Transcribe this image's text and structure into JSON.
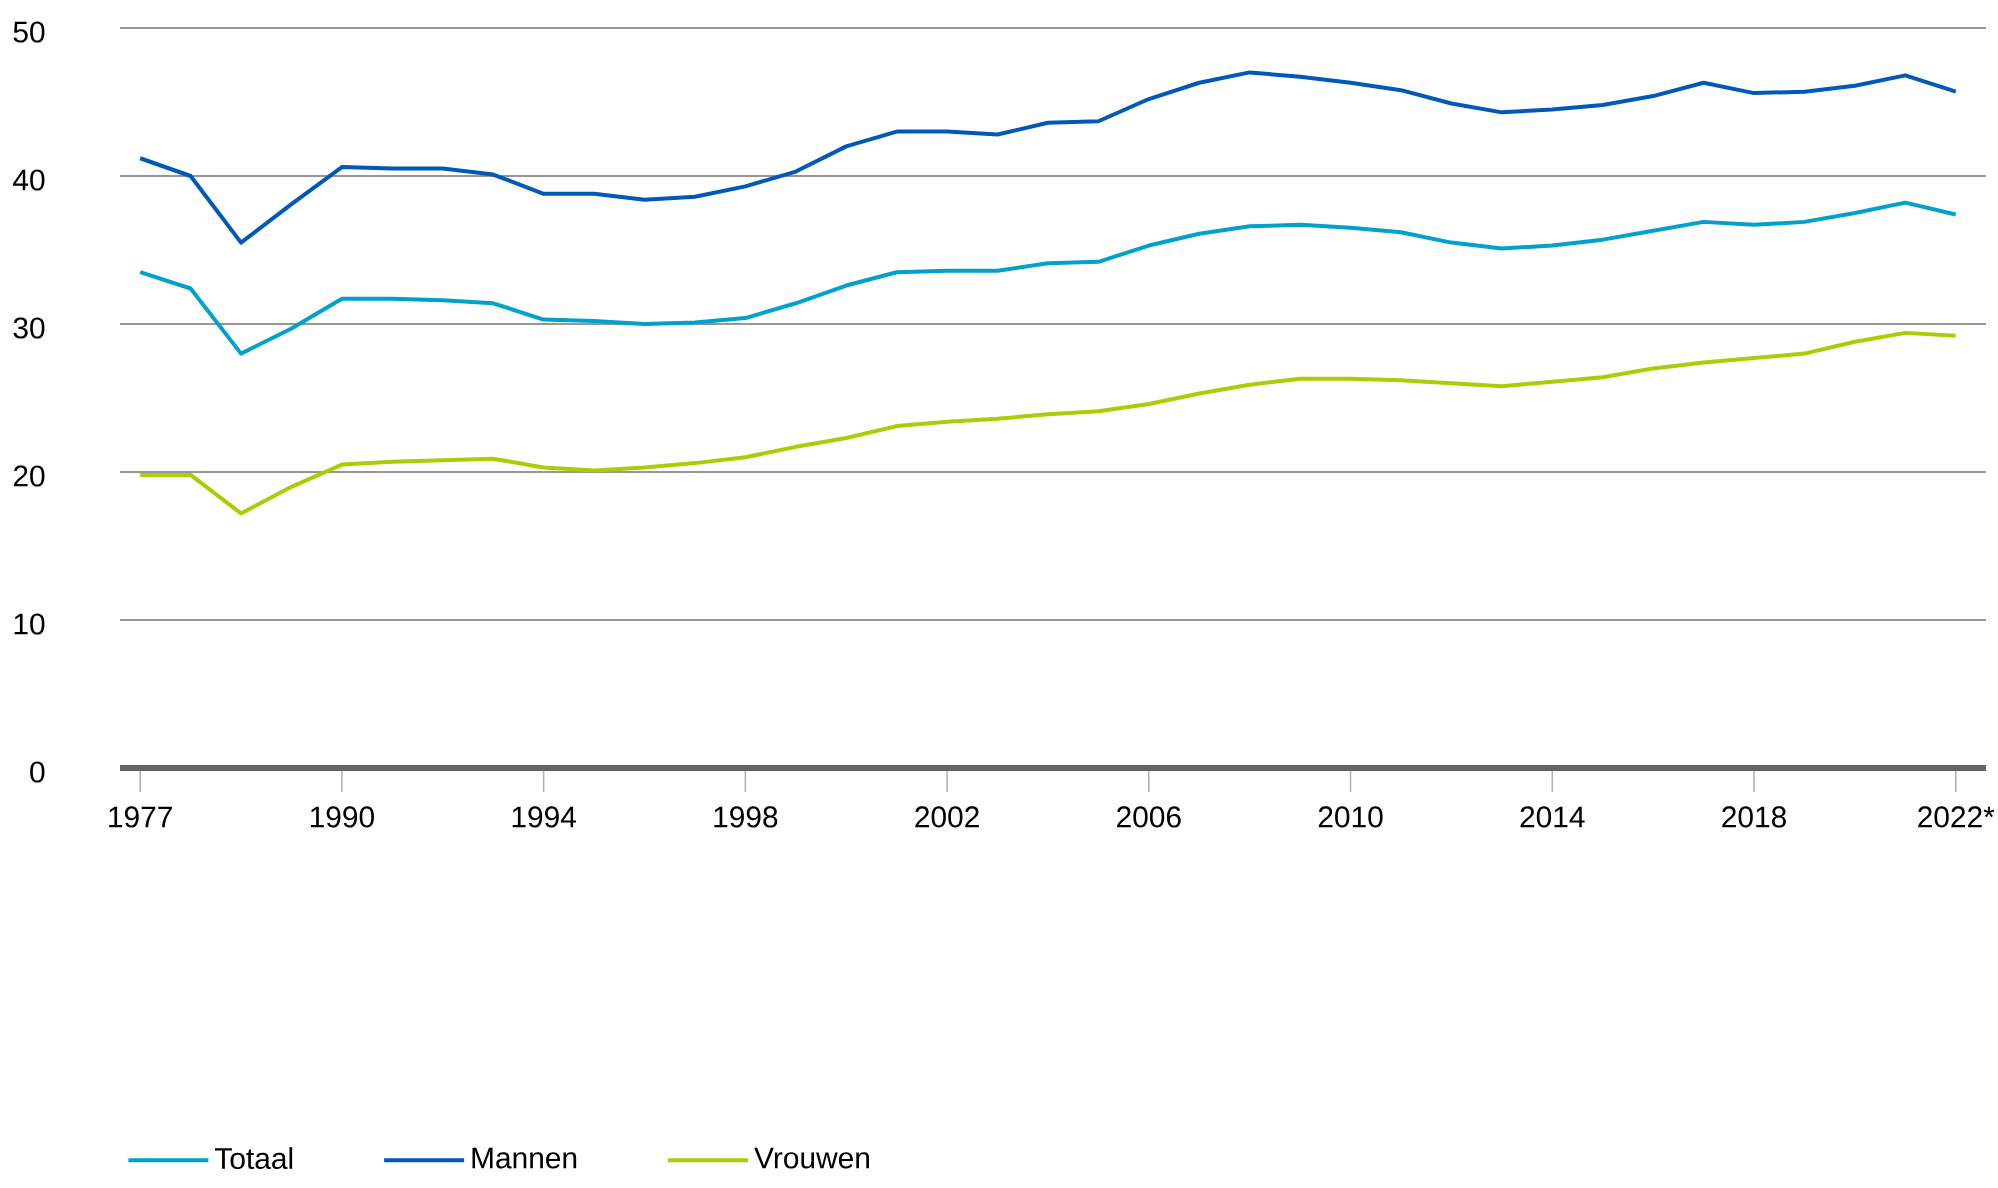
{
  "chart_data": {
    "type": "line",
    "categories": [
      "1977",
      null,
      null,
      null,
      "1990",
      null,
      null,
      null,
      "1994",
      null,
      null,
      null,
      "1998",
      null,
      null,
      null,
      "2002",
      null,
      null,
      null,
      "2006",
      null,
      null,
      null,
      "2010",
      null,
      null,
      null,
      "2014",
      null,
      null,
      null,
      "2018",
      null,
      null,
      null,
      "2022*"
    ],
    "series": [
      {
        "name": "Totaal",
        "color": "#00a1cd",
        "values": [
          33.5,
          32.4,
          28.0,
          29.7,
          31.7,
          31.7,
          31.6,
          31.4,
          30.3,
          30.2,
          30.0,
          30.1,
          30.4,
          31.4,
          32.6,
          33.5,
          33.6,
          33.6,
          34.1,
          34.2,
          35.3,
          36.1,
          36.6,
          36.7,
          36.5,
          36.2,
          35.5,
          35.1,
          35.3,
          35.7,
          36.3,
          36.9,
          36.7,
          36.9,
          37.5,
          38.2,
          37.4
        ]
      },
      {
        "name": "Mannen",
        "color": "#0058b8",
        "values": [
          41.2,
          40.0,
          35.5,
          38.1,
          40.6,
          40.5,
          40.5,
          40.1,
          38.8,
          38.8,
          38.4,
          38.6,
          39.3,
          40.3,
          42.0,
          43.0,
          43.0,
          42.8,
          43.6,
          43.7,
          45.2,
          46.3,
          47.0,
          46.7,
          46.3,
          45.8,
          44.9,
          44.3,
          44.5,
          44.8,
          45.4,
          46.3,
          45.6,
          45.7,
          46.1,
          46.8,
          45.7
        ]
      },
      {
        "name": "Vrouwen",
        "color": "#afcb05",
        "values": [
          19.8,
          19.8,
          17.2,
          19.0,
          20.5,
          20.7,
          20.8,
          20.9,
          20.3,
          20.1,
          20.3,
          20.6,
          21.0,
          21.7,
          22.3,
          23.1,
          23.4,
          23.6,
          23.9,
          24.1,
          24.6,
          25.3,
          25.9,
          26.3,
          26.3,
          26.2,
          26.0,
          25.8,
          26.1,
          26.4,
          27.0,
          27.4,
          27.7,
          28.0,
          28.8,
          29.4,
          29.2
        ]
      }
    ],
    "ylim": [
      0,
      50
    ],
    "yticks": [
      0,
      10,
      20,
      30,
      40,
      50
    ],
    "grid": "y",
    "legend": "bottom"
  }
}
